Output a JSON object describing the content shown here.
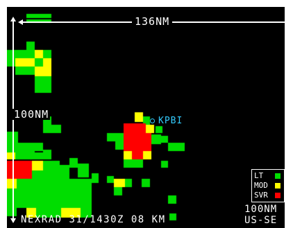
{
  "display": {
    "range_top": "136NM",
    "range_left": "100NM",
    "station": "KPBI",
    "footer": "NEXRAD 31/1430Z 08 KM",
    "range_bottom": "100NM",
    "region": "US-SE"
  },
  "legend": {
    "items": [
      {
        "label": "LT",
        "color": "#00cc00",
        "sw": "lt"
      },
      {
        "label": "MOD",
        "color": "#ffff00",
        "sw": "mod"
      },
      {
        "label": "SVR",
        "color": "#ff0000",
        "sw": "svr"
      }
    ]
  },
  "colors": {
    "background": "#000000",
    "light": "#00dd00",
    "moderate": "#ffff00",
    "severe": "#ff0000",
    "station": "#33ccff"
  }
}
